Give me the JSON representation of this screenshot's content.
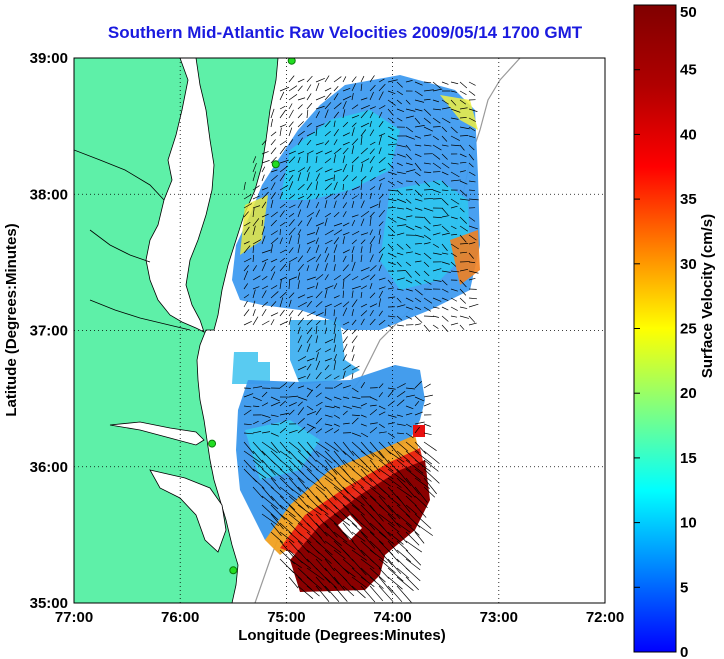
{
  "title": "Southern Mid-Atlantic Raw Velocities 2009/05/14 1700 GMT",
  "map": {
    "xlabel": "Longitude (Degrees:Minutes)",
    "ylabel": "Latitude (Degrees:Minutes)",
    "lon_ticks": [
      "77:00",
      "76:00",
      "75:00",
      "74:00",
      "73:00",
      "72:00"
    ],
    "lat_ticks": [
      "39:00",
      "38:00",
      "37:00",
      "36:00",
      "35:00"
    ],
    "lon_range": [
      -77,
      -72
    ],
    "lat_range": [
      35,
      39
    ],
    "land_color": "#5ef0a8",
    "station_color": "#22dd22"
  },
  "colorbar": {
    "label": "Surface Velocity (cm/s)",
    "ticks": [
      "50",
      "45",
      "40",
      "35",
      "30",
      "25",
      "20",
      "15",
      "10",
      "5",
      "0"
    ],
    "range": [
      0,
      50
    ],
    "colormap": "jet"
  },
  "chart_data": {
    "type": "heatmap",
    "title": "Southern Mid-Atlantic Raw Velocities 2009/05/14 1700 GMT",
    "xlabel": "Longitude (Degrees:Minutes)",
    "ylabel": "Latitude (Degrees:Minutes)",
    "xlim": [
      -77,
      -72
    ],
    "ylim": [
      35,
      39
    ],
    "value_label": "Surface Velocity (cm/s)",
    "value_range": [
      0,
      50
    ],
    "stations": [
      {
        "lon": -74.95,
        "lat": 38.98
      },
      {
        "lon": -75.1,
        "lat": 38.22
      },
      {
        "lon": -75.7,
        "lat": 36.17
      },
      {
        "lon": -75.5,
        "lat": 35.24
      }
    ]
  }
}
